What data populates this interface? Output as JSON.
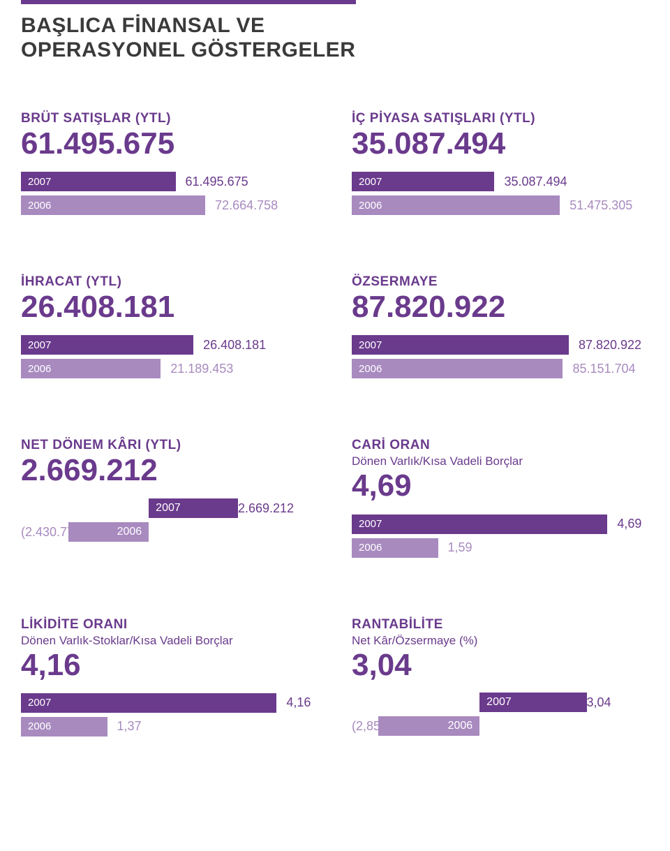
{
  "page_title_line1": "BAŞLICA FİNANSAL VE",
  "page_title_line2": "OPERASYONEL GÖSTERGELER",
  "colors": {
    "primary": "#6a3a8c",
    "secondary": "#a88abf",
    "text": "#3a3a3a",
    "bg": "#ffffff"
  },
  "cards": {
    "brut": {
      "title": "BRÜT SATIŞLAR (YTL)",
      "big": "61.495.675",
      "rows": [
        {
          "year": "2007",
          "value": "61.495.675",
          "tone": "primary",
          "pct": 52
        },
        {
          "year": "2006",
          "value": "72.664.758",
          "tone": "secondary",
          "pct": 62
        }
      ]
    },
    "icpiyasa": {
      "title": "İÇ PİYASA SATIŞLARI (YTL)",
      "big": "35.087.494",
      "rows": [
        {
          "year": "2007",
          "value": "35.087.494",
          "tone": "primary",
          "pct": 48
        },
        {
          "year": "2006",
          "value": "51.475.305",
          "tone": "secondary",
          "pct": 70
        }
      ]
    },
    "ihracat": {
      "title": "İHRACAT (YTL)",
      "big": "26.408.181",
      "rows": [
        {
          "year": "2007",
          "value": "26.408.181",
          "tone": "primary",
          "pct": 58
        },
        {
          "year": "2006",
          "value": "21.189.453",
          "tone": "secondary",
          "pct": 47
        }
      ]
    },
    "ozsermaye": {
      "title": "ÖZSERMAYE",
      "big": "87.820.922",
      "rows": [
        {
          "year": "2007",
          "value": "87.820.922",
          "tone": "primary",
          "pct": 73
        },
        {
          "year": "2006",
          "value": "85.151.704",
          "tone": "secondary",
          "pct": 71
        }
      ]
    },
    "netkar": {
      "title": "NET DÖNEM KÂRI (YTL)",
      "big": "2.669.212",
      "pos": {
        "year": "2007",
        "value": "2.669.212",
        "pct": 30
      },
      "neg": {
        "year": "2006",
        "value": "(2.430.777)",
        "pct": 27
      }
    },
    "cari": {
      "title": "CARİ ORAN",
      "sub": "Dönen Varlık/Kısa Vadeli Borçlar",
      "big": "4,69",
      "rows": [
        {
          "year": "2007",
          "value": "4,69",
          "tone": "primary",
          "pct": 86
        },
        {
          "year": "2006",
          "value": "1,59",
          "tone": "secondary",
          "pct": 29
        }
      ]
    },
    "likidite": {
      "title": "LİKİDİTE ORANI",
      "sub": "Dönen Varlık-Stoklar/Kısa Vadeli Borçlar",
      "big": "4,16",
      "rows": [
        {
          "year": "2007",
          "value": "4,16",
          "tone": "primary",
          "pct": 86
        },
        {
          "year": "2006",
          "value": "1,37",
          "tone": "secondary",
          "pct": 29
        }
      ]
    },
    "rantabilite": {
      "title": "RANTABİLİTE",
      "sub": "Net Kâr/Özsermaye (%)",
      "big": "3,04",
      "pos": {
        "year": "2007",
        "value": "3,04",
        "pct": 36
      },
      "neg": {
        "year": "2006",
        "value": "(2,85)",
        "pct": 34
      }
    }
  }
}
